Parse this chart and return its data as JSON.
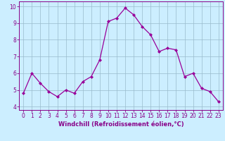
{
  "x": [
    0,
    1,
    2,
    3,
    4,
    5,
    6,
    7,
    8,
    9,
    10,
    11,
    12,
    13,
    14,
    15,
    16,
    17,
    18,
    19,
    20,
    21,
    22,
    23
  ],
  "y": [
    4.8,
    6.0,
    5.4,
    4.9,
    4.6,
    5.0,
    4.8,
    5.5,
    5.8,
    6.8,
    9.1,
    9.3,
    9.9,
    9.5,
    8.8,
    8.3,
    7.3,
    7.5,
    7.4,
    5.8,
    6.0,
    5.1,
    4.9,
    4.3
  ],
  "line_color": "#990099",
  "marker_color": "#990099",
  "bg_color": "#cceeff",
  "grid_color": "#99bbcc",
  "xlabel": "Windchill (Refroidissement éolien,°C)",
  "xlim": [
    -0.5,
    23.5
  ],
  "ylim": [
    3.8,
    10.3
  ],
  "xticks": [
    0,
    1,
    2,
    3,
    4,
    5,
    6,
    7,
    8,
    9,
    10,
    11,
    12,
    13,
    14,
    15,
    16,
    17,
    18,
    19,
    20,
    21,
    22,
    23
  ],
  "yticks": [
    4,
    5,
    6,
    7,
    8,
    9,
    10
  ],
  "tick_label_fontsize": 5.5,
  "xlabel_fontsize": 6.0,
  "label_color": "#880088"
}
